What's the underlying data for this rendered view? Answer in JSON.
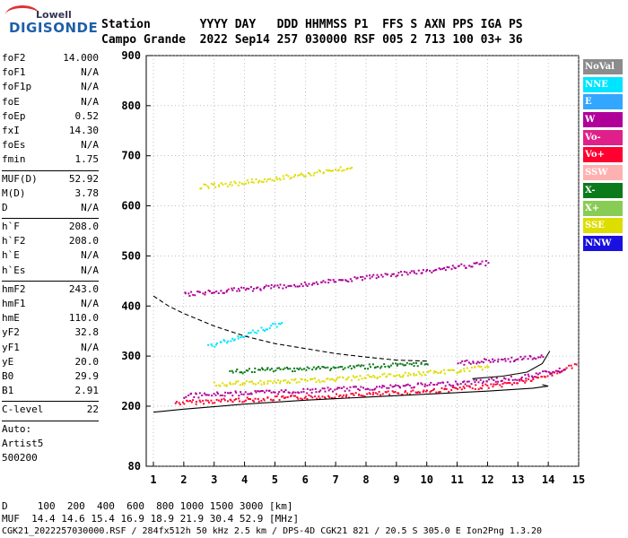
{
  "logo": {
    "brand": "Lowell",
    "model": "DIGISONDE"
  },
  "header": {
    "line1": "Station       YYYY DAY   DDD HHMMSS P1  FFS S AXN PPS IGA PS",
    "line2": "Campo Grande  2022 Sep14 257 030000 RSF 005 2 713 100 03+ 36"
  },
  "params_a": [
    {
      "name": "foF2",
      "value": "14.000"
    },
    {
      "name": "foF1",
      "value": "N/A"
    },
    {
      "name": "foF1p",
      "value": "N/A"
    },
    {
      "name": "foE",
      "value": "N/A"
    },
    {
      "name": "foEp",
      "value": "0.52"
    },
    {
      "name": "fxI",
      "value": "14.30"
    },
    {
      "name": "foEs",
      "value": "N/A"
    },
    {
      "name": "fmin",
      "value": "1.75"
    }
  ],
  "params_b": [
    {
      "name": "MUF(D)",
      "value": "52.92"
    },
    {
      "name": "M(D)",
      "value": "3.78"
    },
    {
      "name": "D",
      "value": "N/A"
    }
  ],
  "params_c": [
    {
      "name": "h`F",
      "value": "208.0"
    },
    {
      "name": "h`F2",
      "value": "208.0"
    },
    {
      "name": "h`E",
      "value": "N/A"
    },
    {
      "name": "h`Es",
      "value": "N/A"
    }
  ],
  "params_d": [
    {
      "name": "hmF2",
      "value": "243.0"
    },
    {
      "name": "hmF1",
      "value": "N/A"
    },
    {
      "name": "hmE",
      "value": "110.0"
    },
    {
      "name": "yF2",
      "value": "32.8"
    },
    {
      "name": "yF1",
      "value": "N/A"
    },
    {
      "name": "yE",
      "value": "20.0"
    },
    {
      "name": "B0",
      "value": "29.9"
    },
    {
      "name": "B1",
      "value": "2.91"
    }
  ],
  "clevel": {
    "name": "C-level",
    "value": "22"
  },
  "auto": [
    "Auto:",
    "Artist5",
    "500200"
  ],
  "legend": [
    {
      "label": "NoVal",
      "color": "#8c8c8c"
    },
    {
      "label": "NNE",
      "color": "#00e5ff"
    },
    {
      "label": "E",
      "color": "#33a6ff"
    },
    {
      "label": "W",
      "color": "#b0009a"
    },
    {
      "label": "Vo-",
      "color": "#e0208a"
    },
    {
      "label": "Vo+",
      "color": "#ff0030"
    },
    {
      "label": "SSW",
      "color": "#ffb0b0"
    },
    {
      "label": "X-",
      "color": "#0a7a1a"
    },
    {
      "label": "X+",
      "color": "#88cc55"
    },
    {
      "label": "SSE",
      "color": "#dddd00"
    },
    {
      "label": "NNW",
      "color": "#1a10e0"
    }
  ],
  "footer": {
    "d_line": "D     100  200  400  600  800 1000 1500 3000 [km]",
    "muf_line": "MUF  14.4 14.6 15.4 16.9 18.9 21.9 30.4 52.9 [MHz]",
    "info_line": "CGK21_2022257030000.RSF / 284fx512h 50 kHz 2.5 km / DPS-4D CGK21 821 / 20.5 S 305.0 E Ion2Png 1.3.20"
  },
  "chart_data": {
    "type": "scatter",
    "xlim": [
      1,
      15
    ],
    "ylim": [
      80,
      900
    ],
    "x_ticks": [
      1,
      2,
      3,
      4,
      5,
      6,
      7,
      8,
      9,
      10,
      11,
      12,
      13,
      14,
      15
    ],
    "y_ticks": [
      80,
      200,
      300,
      400,
      500,
      600,
      700,
      800,
      900
    ],
    "grid": true,
    "legend_position": "right",
    "series": [
      {
        "trace": "f2-main",
        "color": "#ff0030",
        "points": [
          [
            1.7,
            208
          ],
          [
            3,
            212
          ],
          [
            5,
            217
          ],
          [
            7,
            222
          ],
          [
            9,
            228
          ],
          [
            11,
            236
          ],
          [
            12.5,
            245
          ],
          [
            13.5,
            255
          ],
          [
            14.3,
            270
          ],
          [
            14.9,
            285
          ]
        ]
      },
      {
        "trace": "f2-band1",
        "color": "#b0009a",
        "points": [
          [
            2,
            222
          ],
          [
            4,
            228
          ],
          [
            6,
            232
          ],
          [
            8,
            238
          ],
          [
            10,
            244
          ],
          [
            11.5,
            250
          ],
          [
            13,
            258
          ],
          [
            14.5,
            275
          ]
        ]
      },
      {
        "trace": "f2-band2",
        "color": "#dddd00",
        "points": [
          [
            3,
            245
          ],
          [
            5,
            250
          ],
          [
            7,
            255
          ],
          [
            8.5,
            262
          ],
          [
            10,
            268
          ],
          [
            11,
            272
          ],
          [
            12,
            280
          ]
        ]
      },
      {
        "trace": "f2-band3",
        "color": "#0a7a1a",
        "points": [
          [
            3.5,
            270
          ],
          [
            5,
            275
          ],
          [
            7,
            278
          ],
          [
            8.5,
            282
          ],
          [
            10,
            285
          ]
        ]
      },
      {
        "trace": "w-cluster",
        "color": "#b0009a",
        "points": [
          [
            11,
            288
          ],
          [
            12,
            292
          ],
          [
            13,
            296
          ],
          [
            13.8,
            300
          ]
        ]
      },
      {
        "trace": "nne-oblique",
        "color": "#00e5ff",
        "points": [
          [
            2.8,
            320
          ],
          [
            3.5,
            335
          ],
          [
            4.2,
            348
          ],
          [
            4.8,
            360
          ],
          [
            5.2,
            368
          ]
        ]
      },
      {
        "trace": "second-hop",
        "color": "#b0009a",
        "points": [
          [
            2,
            425
          ],
          [
            4,
            435
          ],
          [
            6,
            445
          ],
          [
            8,
            458
          ],
          [
            10,
            472
          ],
          [
            12,
            488
          ]
        ]
      },
      {
        "trace": "third-hop",
        "color": "#dddd00",
        "points": [
          [
            2.5,
            640
          ],
          [
            4,
            648
          ],
          [
            6,
            665
          ],
          [
            7.5,
            678
          ]
        ]
      }
    ],
    "curves": [
      {
        "trace": "dashed",
        "style": "dashed",
        "points": [
          [
            1,
            420
          ],
          [
            1.5,
            400
          ],
          [
            2,
            385
          ],
          [
            3,
            360
          ],
          [
            4,
            340
          ],
          [
            5,
            325
          ],
          [
            6,
            315
          ],
          [
            7,
            305
          ],
          [
            8,
            298
          ],
          [
            9,
            292
          ],
          [
            10,
            290
          ]
        ]
      },
      {
        "trace": "solid-low",
        "style": "solid",
        "points": [
          [
            1,
            188
          ],
          [
            2,
            194
          ],
          [
            4,
            204
          ],
          [
            6,
            212
          ],
          [
            8,
            218
          ],
          [
            10,
            224
          ],
          [
            12,
            230
          ],
          [
            13.5,
            236
          ],
          [
            14,
            240
          ],
          [
            13.8,
            243
          ]
        ]
      },
      {
        "trace": "solid-high",
        "style": "solid",
        "points": [
          [
            11.5,
            255
          ],
          [
            12.5,
            260
          ],
          [
            13.3,
            268
          ],
          [
            13.8,
            285
          ],
          [
            14.05,
            310
          ]
        ]
      }
    ]
  }
}
